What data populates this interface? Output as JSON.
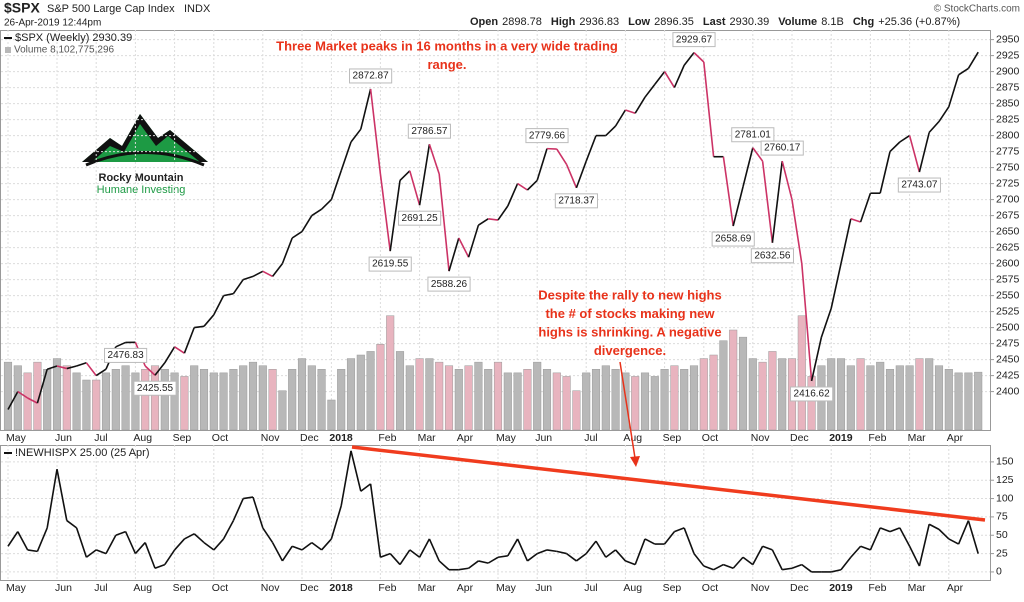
{
  "header": {
    "symbol": "$SPX",
    "name": "S&P 500 Large Cap Index",
    "exchange": "INDX",
    "date": "26-Apr-2019 12:44pm",
    "quote": [
      {
        "label": "Open",
        "value": "2898.78"
      },
      {
        "label": "High",
        "value": "2936.83"
      },
      {
        "label": "Low",
        "value": "2896.35"
      },
      {
        "label": "Last",
        "value": "2930.39"
      },
      {
        "label": "Volume",
        "value": "8.1B"
      },
      {
        "label": "Chg",
        "value": "+25.36 (+0.87%)"
      }
    ],
    "credit": "© StockCharts.com"
  },
  "logo": {
    "line1": "Rocky Mountain",
    "line2": "Humane Investing"
  },
  "chart_data": [
    {
      "type": "line",
      "annotations": [
        [
          "Three Market peaks in 16 months in a very wide trading",
          "range."
        ],
        [
          "Despite the rally to new highs",
          "the # of stocks making new",
          "highs is shrinking.  A negative",
          "divergence."
        ]
      ],
      "categories": [
        "May",
        null,
        null,
        null,
        null,
        "Jun",
        null,
        null,
        null,
        "Jul",
        null,
        null,
        null,
        "Aug",
        null,
        null,
        null,
        "Sep",
        null,
        null,
        null,
        "Oct",
        null,
        null,
        null,
        null,
        "Nov",
        null,
        null,
        null,
        "Dec",
        null,
        null,
        "2018",
        null,
        null,
        null,
        null,
        "Feb",
        null,
        null,
        null,
        "Mar",
        null,
        null,
        null,
        "Apr",
        null,
        null,
        null,
        "May",
        null,
        null,
        null,
        "Jun",
        null,
        null,
        null,
        null,
        "Jul",
        null,
        null,
        null,
        "Aug",
        null,
        null,
        null,
        "Sep",
        null,
        null,
        null,
        "Oct",
        null,
        null,
        null,
        null,
        "Nov",
        null,
        null,
        null,
        "Dec",
        null,
        null,
        null,
        "2019",
        null,
        null,
        null,
        "Feb",
        null,
        null,
        null,
        "Mar",
        null,
        null,
        null,
        "Apr",
        null,
        null,
        null
      ],
      "series": [
        {
          "name": "$SPX (Weekly) 2930.39",
          "color": "#111111",
          "down_color": "#cc3366",
          "values": [
            2372,
            2400,
            2390,
            2382,
            2435,
            2440,
            2436,
            2440,
            2445,
            2425,
            2435,
            2470,
            2476.83,
            2477,
            2440,
            2425.55,
            2445,
            2470,
            2460,
            2500,
            2502,
            2520,
            2550,
            2553,
            2575,
            2580,
            2588,
            2580,
            2600,
            2640,
            2650,
            2675,
            2685,
            2700,
            2745,
            2790,
            2810,
            2872.87,
            2740,
            2619.55,
            2730,
            2745,
            2691.25,
            2786.57,
            2740,
            2588.26,
            2640,
            2610,
            2660,
            2670,
            2668,
            2690,
            2725,
            2715,
            2730,
            2779.66,
            2779,
            2755,
            2718.37,
            2760,
            2800,
            2800,
            2815,
            2840,
            2835,
            2860,
            2880,
            2900,
            2875,
            2910,
            2929.67,
            2915,
            2767,
            2767,
            2658.69,
            2720,
            2781.01,
            2760,
            2632.56,
            2760.17,
            2700,
            2600,
            2416.62,
            2485,
            2530,
            2600,
            2670,
            2665,
            2710,
            2710,
            2775,
            2790,
            2800,
            2743.07,
            2805,
            2822,
            2845,
            2895,
            2905,
            2930.39
          ],
          "value_labels": [
            null,
            null,
            null,
            null,
            null,
            null,
            null,
            null,
            null,
            null,
            null,
            null,
            "2476.83",
            null,
            null,
            "2425.55",
            null,
            null,
            null,
            null,
            null,
            null,
            null,
            null,
            null,
            null,
            null,
            null,
            null,
            null,
            null,
            null,
            null,
            null,
            null,
            null,
            null,
            "2872.87",
            null,
            "2619.55",
            null,
            null,
            "2691.25",
            "2786.57",
            null,
            "2588.26",
            null,
            null,
            null,
            null,
            null,
            null,
            null,
            null,
            null,
            "2779.66",
            null,
            null,
            "2718.37",
            null,
            null,
            null,
            null,
            null,
            null,
            null,
            null,
            null,
            null,
            null,
            "2929.67",
            null,
            null,
            null,
            "2658.69",
            null,
            "2781.01",
            null,
            "2632.56",
            "2760.17",
            null,
            null,
            "2416.62",
            null,
            null,
            null,
            null,
            null,
            null,
            null,
            null,
            null,
            null,
            "2743.07",
            null,
            null,
            null,
            null,
            null,
            null
          ]
        }
      ],
      "volume": {
        "name": "Volume 8,102,775,296",
        "color": "#b8b8b8",
        "down_color": "#e8b4bf",
        "vlim": [
          0,
          56000000000.0
        ],
        "values": [
          9500000000.0,
          9000000000.0,
          8000000000.0,
          9500000000.0,
          8500000000.0,
          10000000000.0,
          9000000000.0,
          8000000000.0,
          7000000000.0,
          7000000000.0,
          8000000000.0,
          8500000000.0,
          9000000000.0,
          8000000000.0,
          8500000000.0,
          9000000000.0,
          8500000000.0,
          8000000000.0,
          7500000000.0,
          9000000000.0,
          8500000000.0,
          8000000000.0,
          8000000000.0,
          8500000000.0,
          9000000000.0,
          9500000000.0,
          9000000000.0,
          8500000000.0,
          5500000000.0,
          8500000000.0,
          10000000000.0,
          9000000000.0,
          8500000000.0,
          4200000000.0,
          8500000000.0,
          10000000000.0,
          10500000000.0,
          11000000000.0,
          12000000000.0,
          16000000000.0,
          11000000000.0,
          9000000000.0,
          10000000000.0,
          10000000000.0,
          9500000000.0,
          9000000000.0,
          8500000000.0,
          9000000000.0,
          9500000000.0,
          8500000000.0,
          9500000000.0,
          8000000000.0,
          8000000000.0,
          8500000000.0,
          9500000000.0,
          8500000000.0,
          8000000000.0,
          7500000000.0,
          5500000000.0,
          8000000000.0,
          8500000000.0,
          9000000000.0,
          8500000000.0,
          8000000000.0,
          7500000000.0,
          8000000000.0,
          7500000000.0,
          8500000000.0,
          9000000000.0,
          8500000000.0,
          9000000000.0,
          10000000000.0,
          10500000000.0,
          12500000000.0,
          14000000000.0,
          13000000000.0,
          10000000000.0,
          9500000000.0,
          11000000000.0,
          10000000000.0,
          10000000000.0,
          16000000000.0,
          7500000000.0,
          9000000000.0,
          10000000000.0,
          10000000000.0,
          9000000000.0,
          10000000000.0,
          9000000000.0,
          9500000000.0,
          8500000000.0,
          9000000000.0,
          9000000000.0,
          10000000000.0,
          10000000000.0,
          9000000000.0,
          8500000000.0,
          8000000000.0,
          8000000000.0,
          8100000000.0
        ]
      },
      "ylim": [
        2340,
        2965
      ],
      "yticks": [
        2400,
        2425,
        2450,
        2475,
        2500,
        2525,
        2550,
        2575,
        2600,
        2625,
        2650,
        2675,
        2700,
        2725,
        2750,
        2775,
        2800,
        2825,
        2850,
        2875,
        2900,
        2925,
        2950
      ],
      "grid": true
    },
    {
      "type": "line",
      "categories": [
        "May",
        null,
        null,
        null,
        null,
        "Jun",
        null,
        null,
        null,
        "Jul",
        null,
        null,
        null,
        "Aug",
        null,
        null,
        null,
        "Sep",
        null,
        null,
        null,
        "Oct",
        null,
        null,
        null,
        null,
        "Nov",
        null,
        null,
        null,
        "Dec",
        null,
        null,
        "2018",
        null,
        null,
        null,
        null,
        "Feb",
        null,
        null,
        null,
        "Mar",
        null,
        null,
        null,
        "Apr",
        null,
        null,
        null,
        "May",
        null,
        null,
        null,
        "Jun",
        null,
        null,
        null,
        null,
        "Jul",
        null,
        null,
        null,
        "Aug",
        null,
        null,
        null,
        "Sep",
        null,
        null,
        null,
        "Oct",
        null,
        null,
        null,
        null,
        "Nov",
        null,
        null,
        null,
        "Dec",
        null,
        null,
        null,
        "2019",
        null,
        null,
        null,
        "Feb",
        null,
        null,
        null,
        "Mar",
        null,
        null,
        null,
        "Apr",
        null,
        null,
        null
      ],
      "series": [
        {
          "name": "!NEWHISPX 25.00 (25 Apr)",
          "color": "#111111",
          "values": [
            35,
            55,
            30,
            28,
            60,
            140,
            70,
            60,
            20,
            30,
            25,
            50,
            55,
            25,
            40,
            5,
            10,
            30,
            45,
            52,
            40,
            30,
            45,
            70,
            100,
            102,
            60,
            40,
            15,
            35,
            30,
            40,
            30,
            45,
            90,
            165,
            110,
            120,
            20,
            25,
            10,
            30,
            20,
            45,
            15,
            3,
            3,
            5,
            15,
            12,
            20,
            22,
            45,
            15,
            25,
            30,
            28,
            25,
            15,
            25,
            42,
            20,
            30,
            15,
            10,
            45,
            38,
            38,
            55,
            60,
            25,
            8,
            3,
            10,
            5,
            20,
            10,
            35,
            30,
            3,
            5,
            10,
            0,
            0,
            0,
            3,
            20,
            35,
            30,
            60,
            55,
            60,
            35,
            8,
            65,
            58,
            45,
            38,
            70,
            25
          ]
        }
      ],
      "ylim": [
        -11,
        173
      ],
      "yticks": [
        0,
        25,
        50,
        75,
        100,
        125,
        150
      ],
      "grid": true
    }
  ]
}
